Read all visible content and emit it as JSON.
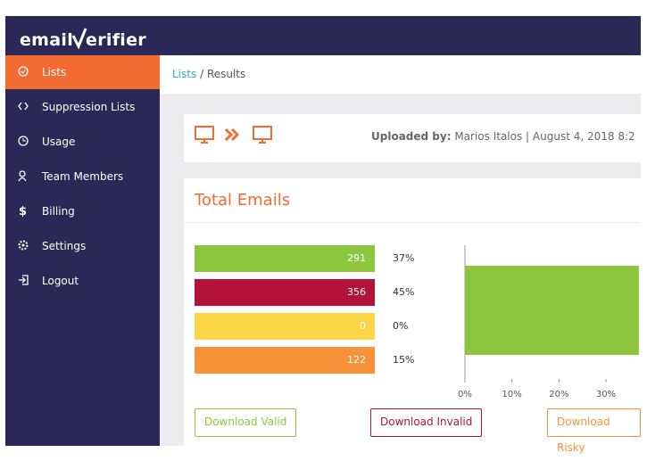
{
  "brand": {
    "prefix": "email",
    "suffix": "erifier"
  },
  "sidebar": {
    "active": 0,
    "items": [
      "Lists",
      "Suppression Lists",
      "Usage",
      "Team Members",
      "Billing",
      "Settings",
      "Logout"
    ]
  },
  "breadcrumb": {
    "link": "Lists",
    "separator": "/",
    "current": "Results"
  },
  "upload": {
    "label": "Uploaded by:",
    "text": "Marios Italos | August 4, 2018 8:2"
  },
  "summary": {
    "title": "Total Emails",
    "rows": [
      {
        "count": 291,
        "percent": "37%",
        "color": "#8cc63e"
      },
      {
        "count": 356,
        "percent": "45%",
        "color": "#b3123a"
      },
      {
        "count": 0,
        "percent": "0%",
        "color": "#fdd648"
      },
      {
        "count": 122,
        "percent": "15%",
        "color": "#f7923a"
      }
    ]
  },
  "chart": {
    "values": [
      37
    ],
    "color": "#8cc63e",
    "xlim": [
      0,
      37.4
    ],
    "xticks": [
      {
        "value": 0,
        "label": "0%"
      },
      {
        "value": 10,
        "label": "10%"
      },
      {
        "value": 20,
        "label": "20%"
      },
      {
        "value": 30,
        "label": "30%"
      }
    ]
  },
  "buttons": [
    {
      "label": "Download Valid",
      "color": "#8cc63e"
    },
    {
      "label": "Download Invalid",
      "color": "#b3123a"
    },
    {
      "label": "Download Risky",
      "color": "#f7923a"
    }
  ]
}
